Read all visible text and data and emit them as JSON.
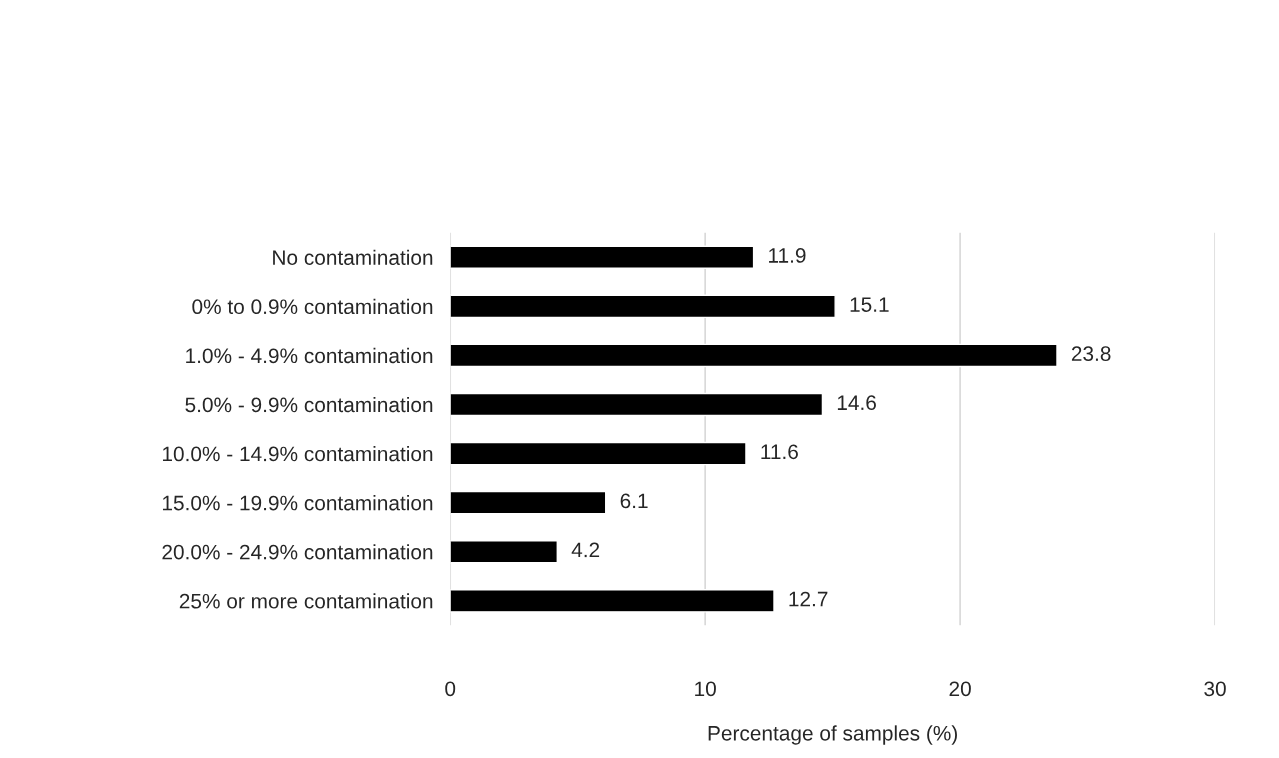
{
  "chart_data": {
    "type": "bar",
    "orientation": "horizontal",
    "xlabel": "Percentage of samples (%)",
    "categories": [
      "No contamination",
      "0% to 0.9% contamination",
      "1.0% - 4.9% contamination",
      "5.0% - 9.9% contamination",
      "10.0% - 14.9% contamination",
      "15.0% - 19.9% contamination",
      "20.0% - 24.9% contamination",
      "25% or more contamination"
    ],
    "values": [
      11.9,
      15.1,
      23.8,
      14.6,
      11.6,
      6.1,
      4.2,
      12.7
    ],
    "color": "#000000",
    "xlim": [
      0,
      30
    ],
    "xticks": [
      0,
      10,
      20,
      30
    ],
    "grid": "x",
    "data_labels": true
  }
}
